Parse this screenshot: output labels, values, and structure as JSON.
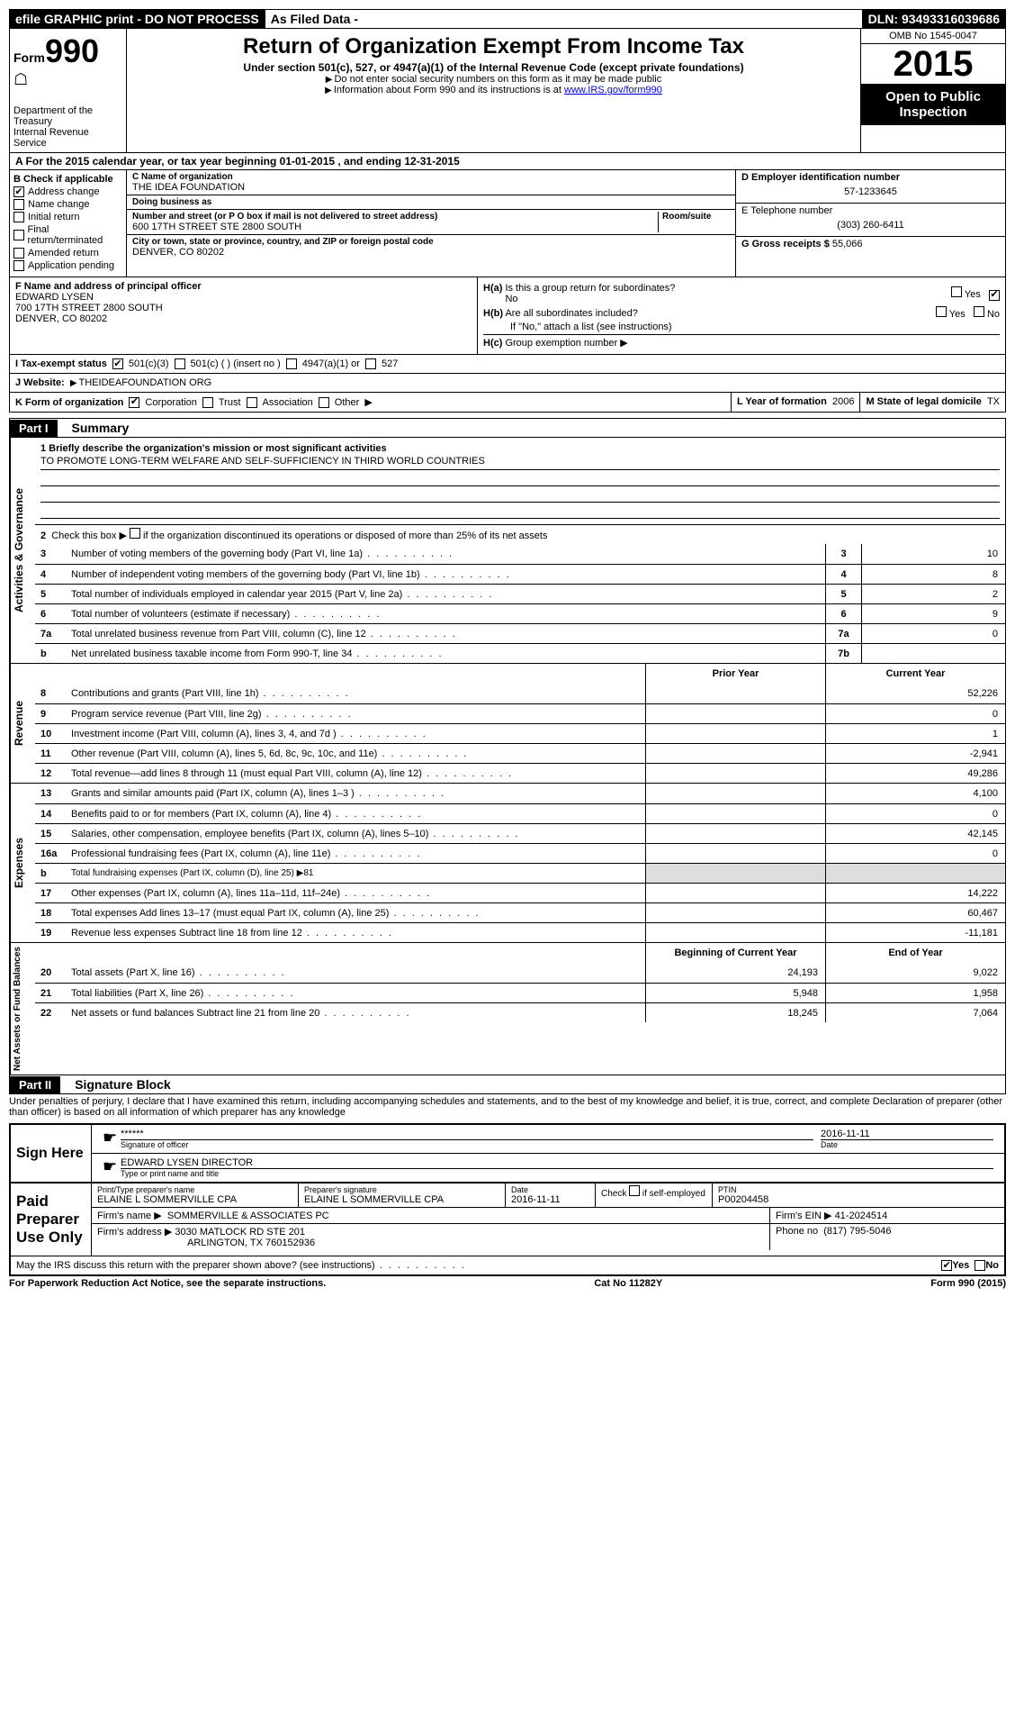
{
  "topbar": {
    "efile": "efile GRAPHIC print - DO NOT PROCESS",
    "filed": "As Filed Data -",
    "dln": "DLN: 93493316039686"
  },
  "header": {
    "form_label": "Form",
    "form_number": "990",
    "dept": "Department of the Treasury",
    "irs": "Internal Revenue Service",
    "title": "Return of Organization Exempt From Income Tax",
    "subtitle": "Under section 501(c), 527, or 4947(a)(1) of the Internal Revenue Code (except private foundations)",
    "note1": "Do not enter social security numbers on this form as it may be made public",
    "note2": "Information about Form 990 and its instructions is at ",
    "note2_link": "www.IRS.gov/form990",
    "omb": "OMB No 1545-0047",
    "year": "2015",
    "open": "Open to Public Inspection"
  },
  "section_a": "A  For the 2015 calendar year, or tax year beginning 01-01-2015   , and ending 12-31-2015",
  "box_b": {
    "title": "B  Check if applicable",
    "items": [
      {
        "label": "Address change",
        "checked": true
      },
      {
        "label": "Name change",
        "checked": false
      },
      {
        "label": "Initial return",
        "checked": false
      },
      {
        "label": "Final return/terminated",
        "checked": false
      },
      {
        "label": "Amended return",
        "checked": false
      },
      {
        "label": "Application pending",
        "checked": false
      }
    ]
  },
  "box_c": {
    "name_lbl": "C Name of organization",
    "name": "THE IDEA FOUNDATION",
    "dba_lbl": "Doing business as",
    "dba": "",
    "addr_lbl": "Number and street (or P O  box if mail is not delivered to street address)",
    "room_lbl": "Room/suite",
    "addr": "600 17TH STREET STE 2800 SOUTH",
    "city_lbl": "City or town, state or province, country, and ZIP or foreign postal code",
    "city": "DENVER, CO  80202"
  },
  "box_d": {
    "lbl": "D Employer identification number",
    "val": "57-1233645"
  },
  "box_e": {
    "lbl": "E Telephone number",
    "val": "(303) 260-6411"
  },
  "box_g": {
    "lbl": "G Gross receipts $",
    "val": "55,066"
  },
  "box_f": {
    "lbl": "F  Name and address of principal officer",
    "name": "EDWARD LYSEN",
    "addr1": "700 17TH STREET 2800 SOUTH",
    "addr2": "DENVER, CO  80202"
  },
  "box_h": {
    "a_lbl": "H(a)  Is this a group return for subordinates?",
    "a_no": "No",
    "a_yes": "Yes",
    "a_checked": "No",
    "b_lbl": "H(b)  Are all subordinates included?",
    "b_yes": "Yes",
    "b_no": "No",
    "b_note": "If \"No,\" attach a list  (see instructions)",
    "c_lbl": "H(c)  Group exemption number"
  },
  "box_i": {
    "lbl": "I  Tax-exempt status",
    "opts": [
      "501(c)(3)",
      "501(c) (  )  (insert no )",
      "4947(a)(1) or",
      "527"
    ],
    "checked": 0
  },
  "box_j": {
    "lbl": "J  Website:",
    "val": "THEIDEAFOUNDATION ORG"
  },
  "box_k": {
    "lbl": "K Form of organization",
    "opts": [
      "Corporation",
      "Trust",
      "Association",
      "Other"
    ],
    "checked": 0
  },
  "box_l": {
    "lbl": "L Year of formation",
    "val": "2006"
  },
  "box_m": {
    "lbl": "M State of legal domicile",
    "val": "TX"
  },
  "part1": {
    "header": "Part I",
    "title": "Summary",
    "q1_lbl": "1 Briefly describe the organization's mission or most significant activities",
    "q1_val": "TO PROMOTE LONG-TERM WELFARE AND SELF-SUFFICIENCY IN THIRD WORLD COUNTRIES",
    "q2": "2  Check this box ▶     if the organization discontinued its operations or disposed of more than 25% of its net assets",
    "gov_lines": [
      {
        "n": "3",
        "d": "Number of voting members of the governing body (Part VI, line 1a)",
        "box": "3",
        "v": "10"
      },
      {
        "n": "4",
        "d": "Number of independent voting members of the governing body (Part VI, line 1b)",
        "box": "4",
        "v": "8"
      },
      {
        "n": "5",
        "d": "Total number of individuals employed in calendar year 2015 (Part V, line 2a)",
        "box": "5",
        "v": "2"
      },
      {
        "n": "6",
        "d": "Total number of volunteers (estimate if necessary)",
        "box": "6",
        "v": "9"
      },
      {
        "n": "7a",
        "d": "Total unrelated business revenue from Part VIII, column (C), line 12",
        "box": "7a",
        "v": "0"
      },
      {
        "n": "b",
        "d": "Net unrelated business taxable income from Form 990-T, line 34",
        "box": "7b",
        "v": ""
      }
    ],
    "col_prior": "Prior Year",
    "col_current": "Current Year",
    "rev_lines": [
      {
        "n": "8",
        "d": "Contributions and grants (Part VIII, line 1h)",
        "p": "",
        "c": "52,226"
      },
      {
        "n": "9",
        "d": "Program service revenue (Part VIII, line 2g)",
        "p": "",
        "c": "0"
      },
      {
        "n": "10",
        "d": "Investment income (Part VIII, column (A), lines 3, 4, and 7d )",
        "p": "",
        "c": "1"
      },
      {
        "n": "11",
        "d": "Other revenue (Part VIII, column (A), lines 5, 6d, 8c, 9c, 10c, and 11e)",
        "p": "",
        "c": "-2,941"
      },
      {
        "n": "12",
        "d": "Total revenue—add lines 8 through 11 (must equal Part VIII, column (A), line 12)",
        "p": "",
        "c": "49,286"
      }
    ],
    "exp_lines": [
      {
        "n": "13",
        "d": "Grants and similar amounts paid (Part IX, column (A), lines 1–3 )",
        "p": "",
        "c": "4,100"
      },
      {
        "n": "14",
        "d": "Benefits paid to or for members (Part IX, column (A), line 4)",
        "p": "",
        "c": "0"
      },
      {
        "n": "15",
        "d": "Salaries, other compensation, employee benefits (Part IX, column (A), lines 5–10)",
        "p": "",
        "c": "42,145"
      },
      {
        "n": "16a",
        "d": "Professional fundraising fees (Part IX, column (A), line 11e)",
        "p": "",
        "c": "0"
      },
      {
        "n": "b",
        "d": "Total fundraising expenses (Part IX, column (D), line 25) ▶81",
        "p": "shade",
        "c": "shade"
      },
      {
        "n": "17",
        "d": "Other expenses (Part IX, column (A), lines 11a–11d, 11f–24e)",
        "p": "",
        "c": "14,222"
      },
      {
        "n": "18",
        "d": "Total expenses  Add lines 13–17 (must equal Part IX, column (A), line 25)",
        "p": "",
        "c": "60,467"
      },
      {
        "n": "19",
        "d": "Revenue less expenses  Subtract line 18 from line 12",
        "p": "",
        "c": "-11,181"
      }
    ],
    "col_begin": "Beginning of Current Year",
    "col_end": "End of Year",
    "net_lines": [
      {
        "n": "20",
        "d": "Total assets (Part X, line 16)",
        "p": "24,193",
        "c": "9,022"
      },
      {
        "n": "21",
        "d": "Total liabilities (Part X, line 26)",
        "p": "5,948",
        "c": "1,958"
      },
      {
        "n": "22",
        "d": "Net assets or fund balances  Subtract line 21 from line 20",
        "p": "18,245",
        "c": "7,064"
      }
    ],
    "vtabs": {
      "gov": "Activities & Governance",
      "rev": "Revenue",
      "exp": "Expenses",
      "net": "Net Assets or Fund Balances"
    }
  },
  "part2": {
    "header": "Part II",
    "title": "Signature Block",
    "penalties": "Under penalties of perjury, I declare that I have examined this return, including accompanying schedules and statements, and to the best of my knowledge and belief, it is true, correct, and complete  Declaration of preparer (other than officer) is based on all information of which preparer has any knowledge",
    "sign_here": "Sign Here",
    "sig_stars": "******",
    "sig_officer_lbl": "Signature of officer",
    "sig_date": "2016-11-11",
    "sig_date_lbl": "Date",
    "sig_name": "EDWARD LYSEN DIRECTOR",
    "sig_name_lbl": "Type or print name and title",
    "paid": "Paid Preparer Use Only",
    "prep_name_lbl": "Print/Type preparer's name",
    "prep_name": "ELAINE L SOMMERVILLE CPA",
    "prep_sig_lbl": "Preparer's signature",
    "prep_sig": "ELAINE L SOMMERVILLE CPA",
    "prep_date_lbl": "Date",
    "prep_date": "2016-11-11",
    "prep_check_lbl": "Check      if self-employed",
    "ptin_lbl": "PTIN",
    "ptin": "P00204458",
    "firm_name_lbl": "Firm's name    ▶",
    "firm_name": "SOMMERVILLE & ASSOCIATES PC",
    "firm_ein_lbl": "Firm's EIN ▶",
    "firm_ein": "41-2024514",
    "firm_addr_lbl": "Firm's address ▶",
    "firm_addr1": "3030 MATLOCK RD STE 201",
    "firm_addr2": "ARLINGTON, TX  760152936",
    "phone_lbl": "Phone no",
    "phone": "(817) 795-5046",
    "discuss": "May the IRS discuss this return with the preparer shown above? (see instructions)",
    "discuss_yes": "Yes",
    "discuss_no": "No",
    "discuss_checked": true
  },
  "footer": {
    "left": "For Paperwork Reduction Act Notice, see the separate instructions.",
    "mid": "Cat No  11282Y",
    "right": "Form 990 (2015)"
  }
}
